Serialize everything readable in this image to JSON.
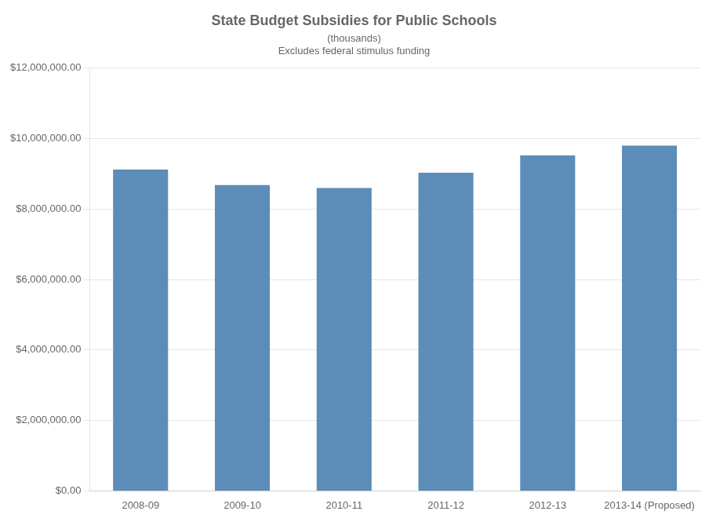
{
  "chart_data": {
    "type": "bar",
    "title": "State Budget Subsidies for Public Schools",
    "subtitle": [
      "(thousands)",
      "Excludes federal stimulus funding"
    ],
    "categories": [
      "2008-09",
      "2009-10",
      "2010-11",
      "2011-12",
      "2012-13",
      "2013-14 (Proposed)"
    ],
    "values": [
      9120000,
      8680000,
      8600000,
      9030000,
      9520000,
      9800000
    ],
    "color": "#5B8DB8",
    "ylim": [
      0,
      12000000
    ],
    "yticks": [
      {
        "value": 0,
        "label": "$0.00"
      },
      {
        "value": 2000000,
        "label": "$2,000,000.00"
      },
      {
        "value": 4000000,
        "label": "$4,000,000.00"
      },
      {
        "value": 6000000,
        "label": "$6,000,000.00"
      },
      {
        "value": 8000000,
        "label": "$8,000,000.00"
      },
      {
        "value": 10000000,
        "label": "$10,000,000.00"
      },
      {
        "value": 12000000,
        "label": "$12,000,000.00"
      }
    ],
    "grid": true
  }
}
